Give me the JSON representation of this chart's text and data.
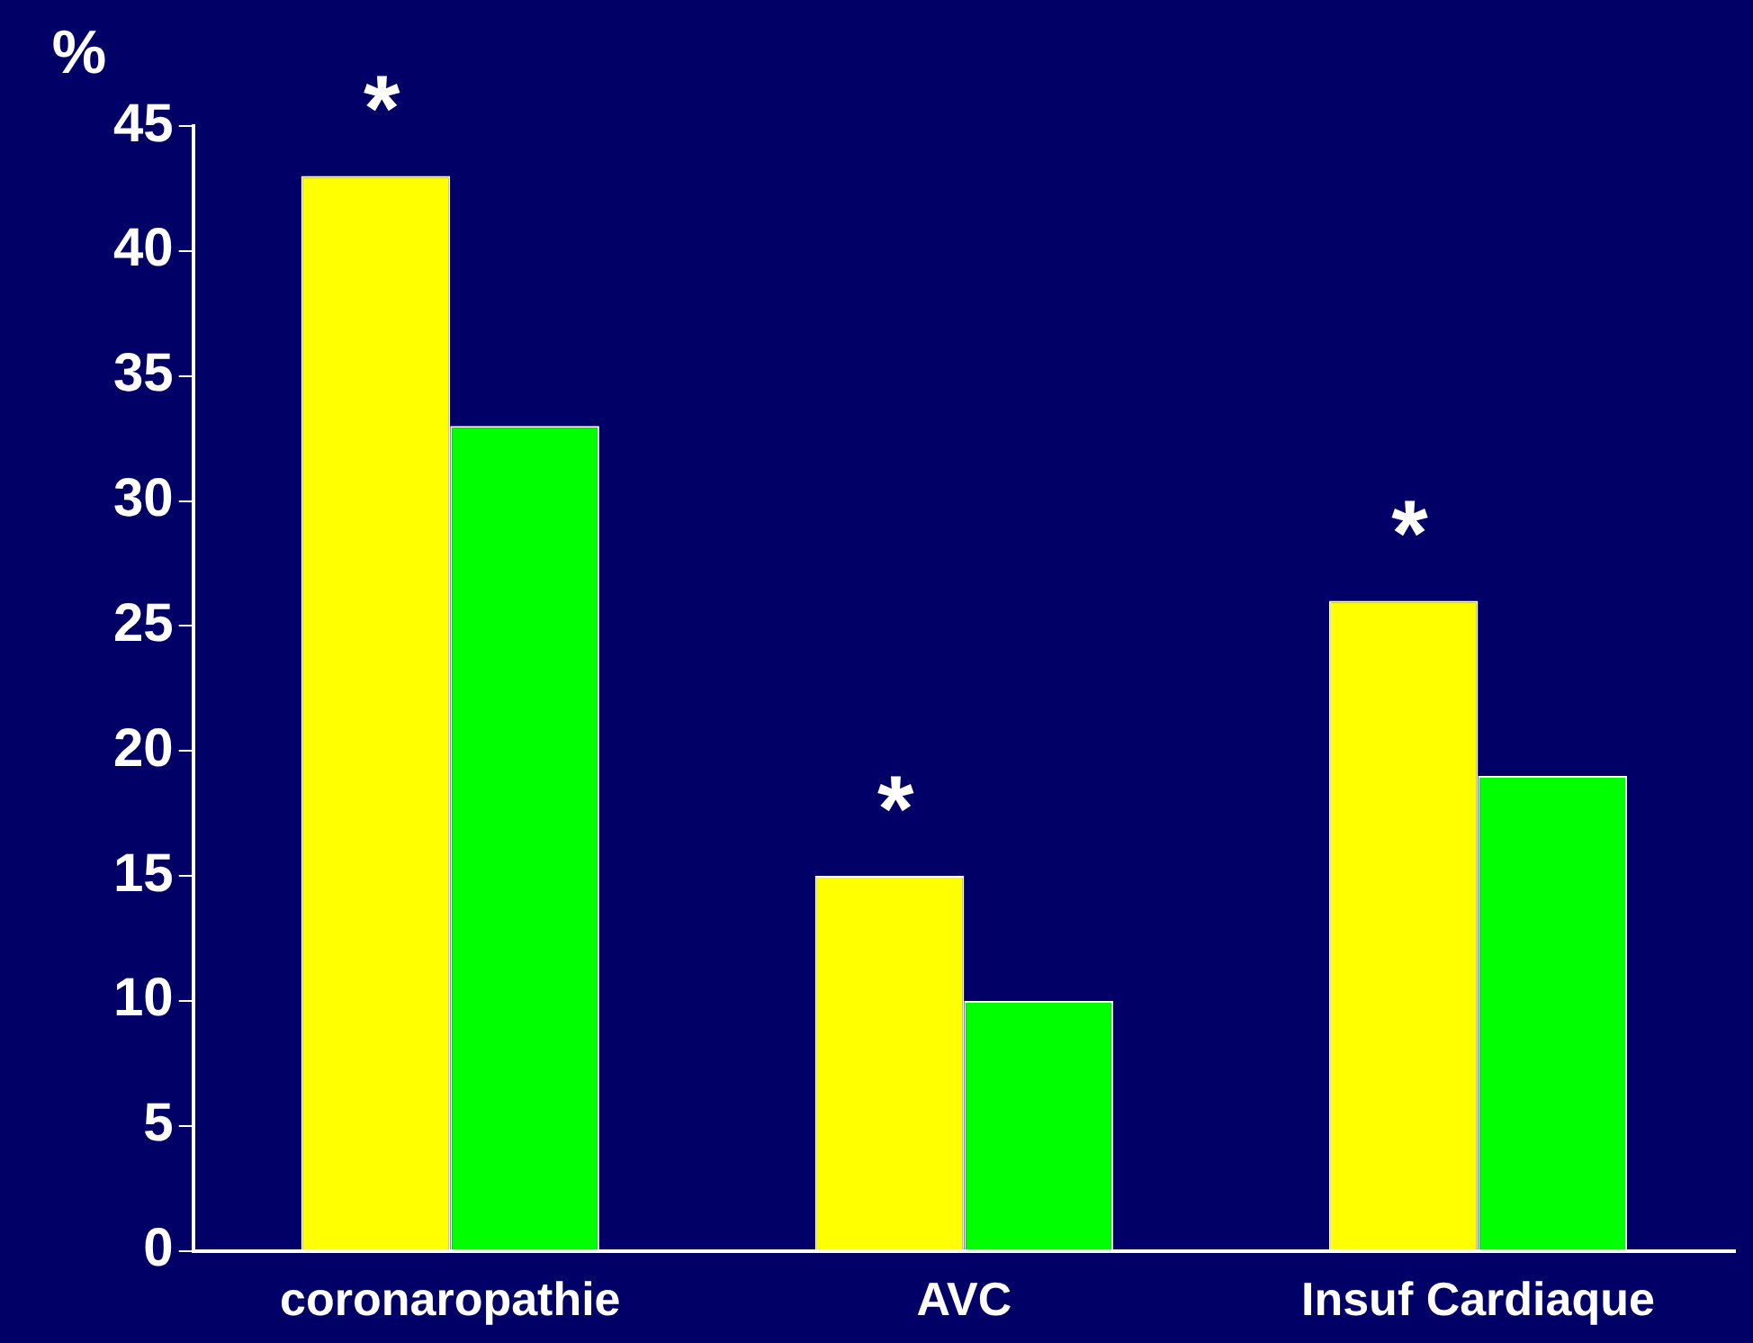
{
  "chart_data": {
    "type": "bar",
    "ylabel": "%",
    "categories": [
      "coronaropathie",
      "AVC",
      "Insuf Cardiaque"
    ],
    "series": [
      {
        "color": "#ffff00",
        "values": [
          43,
          15,
          26
        ]
      },
      {
        "color": "#00ff00",
        "values": [
          33,
          10,
          19
        ]
      }
    ],
    "ylim": [
      0,
      45
    ],
    "yticks": [
      0,
      5,
      10,
      15,
      20,
      25,
      30,
      35,
      40,
      45
    ],
    "grid": false,
    "legend": false,
    "annotations": [
      {
        "text": "*",
        "x": "coronaropathie",
        "y": 43
      },
      {
        "text": "*",
        "x": "AVC",
        "y": 15
      },
      {
        "text": "*",
        "x": "Insuf Cardiaque",
        "y": 26
      }
    ]
  }
}
